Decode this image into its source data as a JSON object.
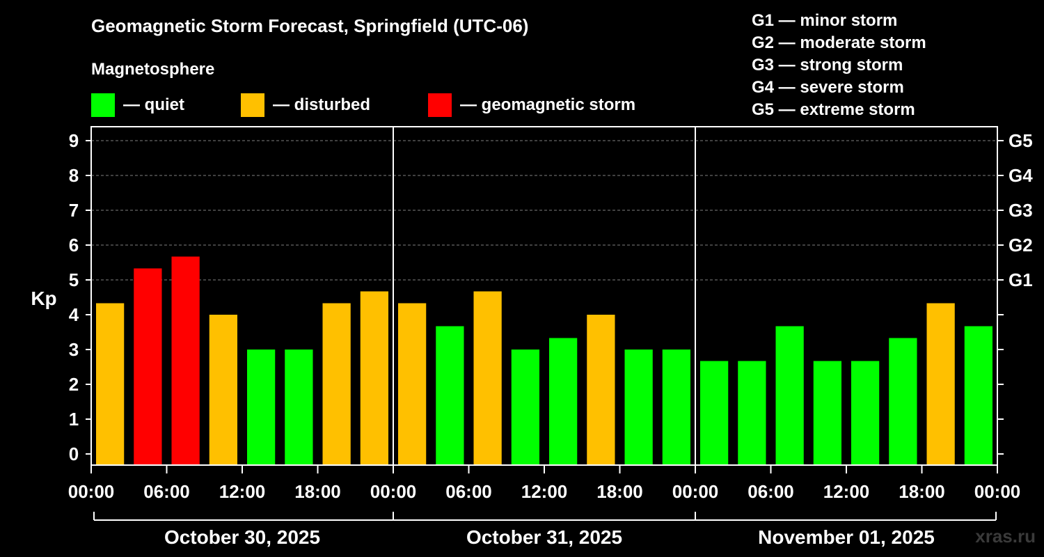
{
  "header": {
    "title": "Geomagnetic Storm Forecast, Springfield (UTC-06)",
    "subtitle": "Magnetosphere"
  },
  "legend": [
    {
      "label": "— quiet",
      "color": "#00ff00"
    },
    {
      "label": "— disturbed",
      "color": "#ffc000"
    },
    {
      "label": "— geomagnetic storm",
      "color": "#ff0000"
    }
  ],
  "storm_levels": [
    "G1 — minor storm",
    "G2 — moderate storm",
    "G3 — strong storm",
    "G4 — severe storm",
    "G5 — extreme storm"
  ],
  "watermark": "xras.ru",
  "chart_data": {
    "type": "bar",
    "ylabel": "Kp",
    "ylim": [
      0,
      9
    ],
    "yticks": [
      "0",
      "1",
      "2",
      "3",
      "4",
      "5",
      "6",
      "7",
      "8",
      "9"
    ],
    "right_ticks": [
      {
        "value": 5,
        "label": "G1"
      },
      {
        "value": 6,
        "label": "G2"
      },
      {
        "value": 7,
        "label": "G3"
      },
      {
        "value": 8,
        "label": "G4"
      },
      {
        "value": 9,
        "label": "G5"
      }
    ],
    "grid": true,
    "xticks": [
      "00:00",
      "06:00",
      "12:00",
      "18:00",
      "00:00",
      "06:00",
      "12:00",
      "18:00",
      "00:00",
      "06:00",
      "12:00",
      "18:00",
      "00:00"
    ],
    "days": [
      "October 30, 2025",
      "October 31, 2025",
      "November 01, 2025"
    ],
    "colors": {
      "quiet": "#00ff00",
      "disturbed": "#ffc000",
      "storm": "#ff0000"
    },
    "values": [
      4.33,
      5.33,
      5.67,
      4.0,
      3.0,
      3.0,
      4.33,
      4.67,
      4.33,
      3.67,
      4.67,
      3.0,
      3.33,
      4.0,
      3.0,
      3.0,
      2.67,
      2.67,
      3.67,
      2.67,
      2.67,
      3.33,
      4.33,
      3.67
    ],
    "categories": [
      "disturbed",
      "storm",
      "storm",
      "disturbed",
      "quiet",
      "quiet",
      "disturbed",
      "disturbed",
      "disturbed",
      "quiet",
      "disturbed",
      "quiet",
      "quiet",
      "disturbed",
      "quiet",
      "quiet",
      "quiet",
      "quiet",
      "quiet",
      "quiet",
      "quiet",
      "quiet",
      "disturbed",
      "quiet"
    ]
  }
}
